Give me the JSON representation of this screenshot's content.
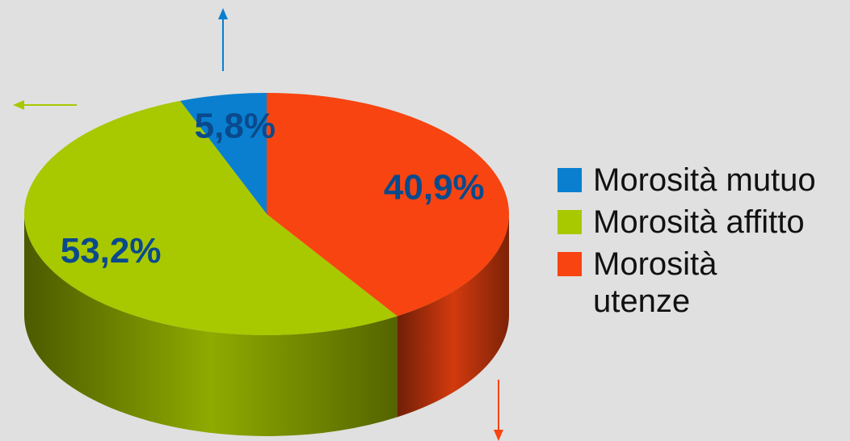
{
  "chart_data": {
    "type": "pie3d",
    "categories": [
      "Morosità mutuo",
      "Morosità affitto",
      "Morosità utenze"
    ],
    "values": [
      5.8,
      53.2,
      40.9
    ],
    "value_labels": [
      "5,8%",
      "53,2%",
      "40,9%"
    ],
    "colors": [
      "#0a7fd0",
      "#a8c800",
      "#f84410"
    ],
    "legend": "right"
  }
}
